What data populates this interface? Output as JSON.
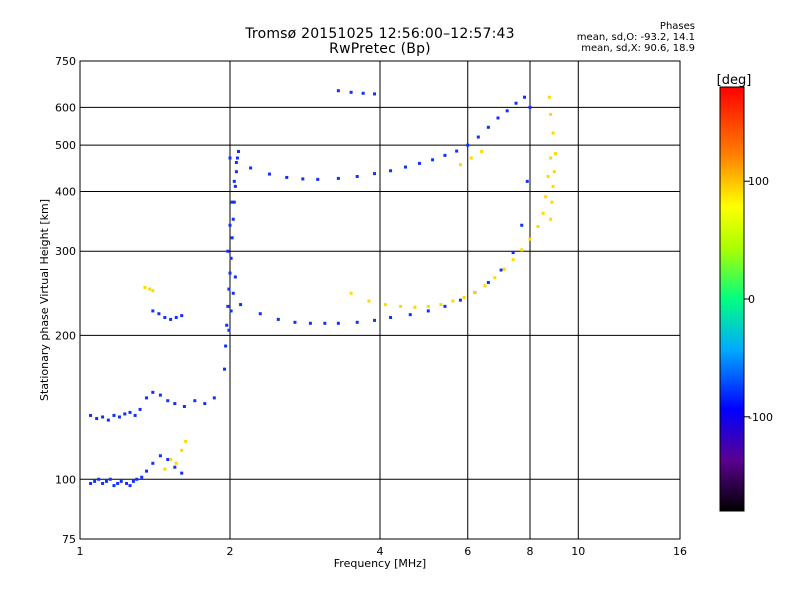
{
  "header": {
    "title_line1": "Tromsø 20151025 12:56:00–12:57:43",
    "title_line2": "RwPretec (Bp)",
    "stats_title": "Phases",
    "stats_o": "mean, sd,O: -93.2, 14.1",
    "stats_x": "mean, sd,X:  90.6, 18.9"
  },
  "chart_data": {
    "type": "scatter",
    "xlabel": "Frequency [MHz]",
    "ylabel": "Stationary phase Virtual Height [km]",
    "xscale": "log",
    "yscale": "log",
    "xlim": [
      1,
      16
    ],
    "ylim": [
      75,
      750
    ],
    "xticks": [
      1,
      2,
      4,
      6,
      8,
      10,
      16
    ],
    "yticks": [
      75,
      100,
      200,
      300,
      400,
      500,
      600,
      750
    ],
    "grid": true,
    "colorbar": {
      "label": "[deg]",
      "range": [
        -180,
        180
      ],
      "ticks": [
        100,
        0,
        -100
      ]
    },
    "series": [
      {
        "phase": -100,
        "x": [
          1.05,
          1.07,
          1.09,
          1.11,
          1.13,
          1.15,
          1.17,
          1.19,
          1.21,
          1.24,
          1.26,
          1.28,
          1.3,
          1.33,
          1.36,
          1.4,
          1.45,
          1.5,
          1.55,
          1.6
        ],
        "y": [
          98,
          99,
          100,
          98,
          99,
          100,
          97,
          98,
          99,
          98,
          97,
          99,
          100,
          101,
          104,
          108,
          112,
          110,
          106,
          103
        ]
      },
      {
        "phase": -100,
        "x": [
          1.05,
          1.08,
          1.11,
          1.14,
          1.17,
          1.2,
          1.23,
          1.26,
          1.29,
          1.32,
          1.36,
          1.4,
          1.45,
          1.5,
          1.55,
          1.62,
          1.7,
          1.78,
          1.86
        ],
        "y": [
          136,
          134,
          135,
          133,
          136,
          135,
          137,
          138,
          136,
          140,
          148,
          152,
          150,
          146,
          144,
          142,
          146,
          144,
          148
        ]
      },
      {
        "phase": -100,
        "x": [
          1.4,
          1.44,
          1.48,
          1.52,
          1.56,
          1.6
        ],
        "y": [
          225,
          222,
          218,
          216,
          218,
          220
        ]
      },
      {
        "phase": -100,
        "x": [
          1.95,
          1.96,
          1.97,
          1.98,
          1.99,
          2.0,
          2.01,
          2.02,
          2.03,
          2.04,
          2.05,
          2.06,
          2.07,
          2.08,
          1.99,
          2.01,
          2.03,
          2.05,
          1.98,
          2.0,
          2.02,
          2.04,
          2.06
        ],
        "y": [
          170,
          190,
          210,
          230,
          250,
          270,
          290,
          320,
          350,
          380,
          410,
          440,
          470,
          485,
          205,
          225,
          245,
          265,
          300,
          340,
          380,
          420,
          460
        ]
      },
      {
        "phase": -100,
        "x": [
          2.1,
          2.3,
          2.5,
          2.7,
          2.9,
          3.1,
          3.3,
          3.6,
          3.9,
          4.2,
          4.6,
          5.0,
          5.4,
          5.8,
          6.2,
          6.6,
          7.0,
          7.4,
          7.7,
          7.9,
          8.0
        ],
        "y": [
          232,
          222,
          216,
          213,
          212,
          212,
          212,
          213,
          215,
          218,
          221,
          225,
          230,
          237,
          246,
          258,
          274,
          298,
          340,
          420,
          600
        ]
      },
      {
        "phase": -100,
        "x": [
          2.0,
          2.2,
          2.4,
          2.6,
          2.8,
          3.0,
          3.3,
          3.6,
          3.9,
          4.2,
          4.5,
          4.8,
          5.1,
          5.4,
          5.7
        ],
        "y": [
          470,
          448,
          435,
          428,
          425,
          424,
          426,
          430,
          436,
          442,
          450,
          458,
          466,
          476,
          486
        ]
      },
      {
        "phase": -100,
        "x": [
          6.0,
          6.3,
          6.6,
          6.9,
          7.2,
          7.5,
          7.8
        ],
        "y": [
          500,
          520,
          545,
          570,
          590,
          612,
          630
        ]
      },
      {
        "phase": -100,
        "x": [
          3.3,
          3.5,
          3.7,
          3.9
        ],
        "y": [
          650,
          645,
          642,
          640
        ]
      },
      {
        "phase": 120,
        "x": [
          3.5,
          3.8,
          4.1,
          4.4,
          4.7,
          5.0,
          5.3,
          5.6,
          5.9,
          6.2,
          6.5,
          6.8,
          7.1,
          7.4,
          7.7,
          8.0,
          8.3,
          8.5,
          8.6,
          8.7,
          8.8
        ],
        "y": [
          245,
          236,
          232,
          230,
          229,
          230,
          232,
          236,
          240,
          246,
          254,
          264,
          275,
          288,
          302,
          318,
          338,
          360,
          390,
          430,
          470
        ]
      },
      {
        "phase": 120,
        "x": [
          8.8,
          8.85,
          8.9,
          8.95,
          9.0,
          8.9,
          8.8,
          8.75
        ],
        "y": [
          350,
          380,
          410,
          440,
          480,
          530,
          580,
          630
        ]
      },
      {
        "phase": 120,
        "x": [
          5.8,
          6.1,
          6.4
        ],
        "y": [
          455,
          470,
          485
        ]
      },
      {
        "phase": 120,
        "x": [
          1.35,
          1.38,
          1.4,
          1.48,
          1.52,
          1.56,
          1.6,
          1.63
        ],
        "y": [
          252,
          250,
          248,
          105,
          110,
          108,
          115,
          120
        ]
      }
    ]
  }
}
